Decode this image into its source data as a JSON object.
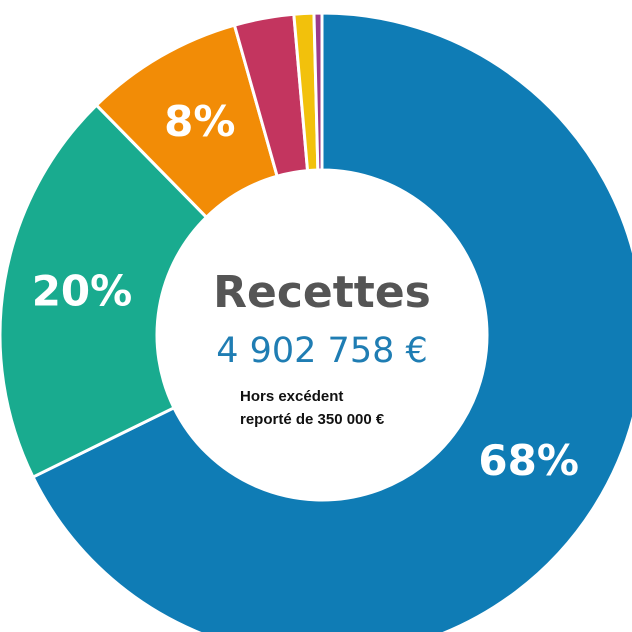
{
  "chart_data": {
    "type": "pie",
    "donut": true,
    "center": {
      "title": "Recettes",
      "amount": "4 902 758 €",
      "note_line1": "Hors excédent",
      "note_line2": "reporté de 350 000 €"
    },
    "slices": [
      {
        "value": 68,
        "label": "68%",
        "color": "#0f7cb5"
      },
      {
        "value": 20,
        "label": "20%",
        "color": "#19ab8f"
      },
      {
        "value": 8,
        "label": "8%",
        "color": "#f28c06"
      },
      {
        "value": 3,
        "label": "",
        "color": "#c3355f"
      },
      {
        "value": 1,
        "label": "",
        "color": "#f2c10c"
      },
      {
        "value": 0.4,
        "label": "",
        "color": "#9b3a8a"
      }
    ]
  }
}
